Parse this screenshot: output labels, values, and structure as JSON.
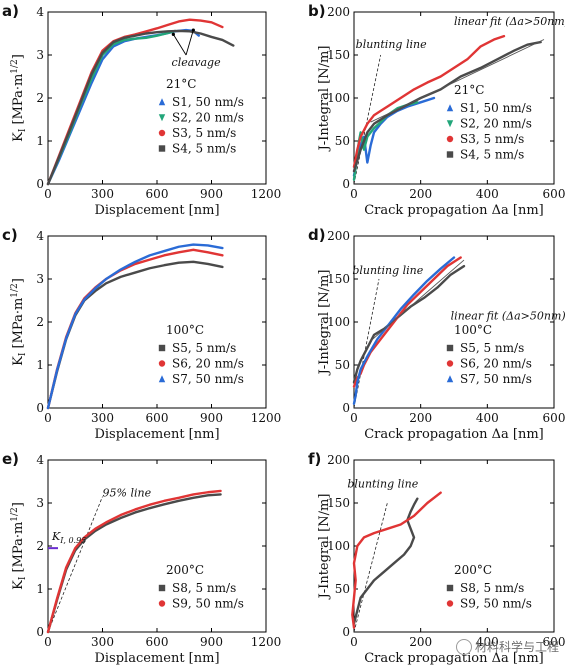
{
  "colors": {
    "blue": "#2a6bd6",
    "green": "#22a67a",
    "red": "#e03535",
    "dark": "#4a4a4a",
    "purple": "#6a2bd0",
    "fit": "#555555"
  },
  "watermark": "材料科学与工程",
  "chart_data": [
    {
      "panel": "a)",
      "type": "scatter",
      "xlabel": "Displacement [nm]",
      "ylabel_main": "K",
      "ylabel_sub": "I",
      "ylabel_rest": " [MPa·m",
      "ylabel_sup": "1/2",
      "ylabel_end": "]",
      "xlim": [
        0,
        1200
      ],
      "ylim": [
        0,
        4
      ],
      "xticks": [
        "0",
        "300",
        "600",
        "900",
        "1200"
      ],
      "yticks": [
        "0",
        "1",
        "2",
        "3",
        "4"
      ],
      "legend_title": "21°C",
      "legend_position": "center-right",
      "annotations": [
        {
          "text": "cleavage",
          "x": 680,
          "y": 2.75
        }
      ],
      "arrows": [
        {
          "x1": 760,
          "y1": 3.0,
          "x2": 690,
          "y2": 3.48
        },
        {
          "x1": 760,
          "y1": 3.0,
          "x2": 800,
          "y2": 3.58
        }
      ],
      "series": [
        {
          "name": "S1, 50 nm/s",
          "marker": "triangle",
          "color": "blue",
          "x": [
            0,
            60,
            120,
            180,
            240,
            300,
            360,
            420,
            480,
            540,
            600,
            650,
            700,
            760,
            800,
            830
          ],
          "y": [
            0,
            0.55,
            1.15,
            1.75,
            2.35,
            2.9,
            3.2,
            3.32,
            3.38,
            3.42,
            3.46,
            3.5,
            3.55,
            3.58,
            3.56,
            3.45
          ]
        },
        {
          "name": "S2, 20 nm/s",
          "marker": "triangle-down",
          "color": "green",
          "x": [
            0,
            60,
            120,
            180,
            240,
            300,
            360,
            420,
            480,
            540,
            600,
            650,
            700
          ],
          "y": [
            0,
            0.6,
            1.2,
            1.85,
            2.45,
            3.0,
            3.25,
            3.35,
            3.38,
            3.4,
            3.45,
            3.5,
            3.56
          ]
        },
        {
          "name": "S3, 5 nm/s",
          "marker": "circle",
          "color": "red",
          "x": [
            0,
            60,
            120,
            180,
            240,
            300,
            360,
            420,
            480,
            540,
            600,
            660,
            720,
            780,
            840,
            900,
            960
          ],
          "y": [
            0,
            0.65,
            1.3,
            1.95,
            2.6,
            3.1,
            3.32,
            3.42,
            3.48,
            3.55,
            3.62,
            3.7,
            3.78,
            3.82,
            3.8,
            3.76,
            3.65
          ]
        },
        {
          "name": "S4, 5 nm/s",
          "marker": "square",
          "color": "dark",
          "x": [
            0,
            60,
            120,
            180,
            240,
            300,
            360,
            420,
            480,
            540,
            600,
            660,
            720,
            780,
            840,
            900,
            960,
            1020
          ],
          "y": [
            0,
            0.62,
            1.25,
            1.9,
            2.55,
            3.05,
            3.3,
            3.4,
            3.45,
            3.5,
            3.53,
            3.55,
            3.56,
            3.55,
            3.5,
            3.42,
            3.35,
            3.22
          ]
        }
      ]
    },
    {
      "panel": "b)",
      "type": "scatter",
      "xlabel": "Crack propagation Δa [nm]",
      "ylabel": "J-Integral [N/m]",
      "xlim": [
        0,
        600
      ],
      "ylim": [
        0,
        200
      ],
      "xticks": [
        "0",
        "200",
        "400",
        "600"
      ],
      "yticks": [
        "0",
        "50",
        "100",
        "150",
        "200"
      ],
      "legend_title": "21°C",
      "legend_position": "bottom-right",
      "annotations": [
        {
          "text": "linear fit (Δa>50nm)",
          "x": 300,
          "y": 185
        },
        {
          "text": "blunting line",
          "x": 5,
          "y": 158
        }
      ],
      "fit_line": {
        "x": [
          50,
          570
        ],
        "y": [
          72,
          168
        ]
      },
      "blunting_line": {
        "x": [
          0,
          80
        ],
        "y": [
          0,
          150
        ]
      },
      "series": [
        {
          "name": "S1, 50 nm/s",
          "marker": "triangle",
          "color": "blue",
          "x": [
            0,
            10,
            20,
            30,
            40,
            50,
            60,
            80,
            100,
            130,
            160,
            200,
            240
          ],
          "y": [
            10,
            30,
            45,
            55,
            25,
            45,
            60,
            70,
            78,
            85,
            90,
            95,
            100
          ]
        },
        {
          "name": "S2, 20 nm/s",
          "marker": "triangle-down",
          "color": "green",
          "x": [
            0,
            5,
            10,
            15,
            20,
            30,
            40,
            60,
            80,
            100,
            130,
            160,
            190
          ],
          "y": [
            5,
            20,
            35,
            50,
            60,
            40,
            55,
            65,
            72,
            80,
            88,
            92,
            95
          ]
        },
        {
          "name": "S3, 5 nm/s",
          "marker": "circle",
          "color": "red",
          "x": [
            0,
            10,
            20,
            40,
            60,
            80,
            100,
            140,
            180,
            220,
            260,
            300,
            340,
            380,
            420,
            450
          ],
          "y": [
            20,
            40,
            55,
            70,
            80,
            85,
            90,
            100,
            110,
            118,
            125,
            135,
            145,
            160,
            168,
            172
          ]
        },
        {
          "name": "S4, 5 nm/s",
          "marker": "square",
          "color": "dark",
          "x": [
            0,
            20,
            40,
            60,
            100,
            150,
            200,
            260,
            320,
            380,
            430,
            480,
            520,
            560
          ],
          "y": [
            15,
            40,
            60,
            70,
            80,
            90,
            100,
            110,
            125,
            135,
            145,
            155,
            162,
            165
          ]
        }
      ]
    },
    {
      "panel": "c)",
      "type": "scatter",
      "xlabel": "Displacement [nm]",
      "ylabel_main": "K",
      "ylabel_sub": "I",
      "ylabel_rest": " [MPa·m",
      "ylabel_sup": "1/2",
      "ylabel_end": "]",
      "xlim": [
        0,
        1200
      ],
      "ylim": [
        0,
        4
      ],
      "xticks": [
        "0",
        "300",
        "600",
        "900",
        "1200"
      ],
      "yticks": [
        "0",
        "1",
        "2",
        "3",
        "4"
      ],
      "legend_title": "100°C",
      "legend_position": "bottom-right",
      "series": [
        {
          "name": "S5, 5 nm/s",
          "marker": "square",
          "color": "dark",
          "x": [
            0,
            50,
            100,
            150,
            200,
            260,
            320,
            400,
            480,
            560,
            640,
            720,
            800,
            880,
            960
          ],
          "y": [
            0,
            0.85,
            1.6,
            2.15,
            2.5,
            2.72,
            2.9,
            3.05,
            3.15,
            3.25,
            3.32,
            3.38,
            3.4,
            3.35,
            3.28
          ]
        },
        {
          "name": "S6, 20 nm/s",
          "marker": "circle",
          "color": "red",
          "x": [
            0,
            50,
            100,
            150,
            200,
            260,
            320,
            400,
            480,
            560,
            640,
            720,
            800,
            880,
            960
          ],
          "y": [
            0,
            0.9,
            1.65,
            2.2,
            2.55,
            2.8,
            3.0,
            3.2,
            3.35,
            3.45,
            3.55,
            3.62,
            3.68,
            3.62,
            3.55
          ]
        },
        {
          "name": "S7, 50 nm/s",
          "marker": "triangle",
          "color": "blue",
          "x": [
            0,
            50,
            100,
            150,
            200,
            260,
            320,
            400,
            480,
            560,
            640,
            720,
            800,
            880,
            960
          ],
          "y": [
            0,
            0.88,
            1.62,
            2.18,
            2.52,
            2.78,
            3.0,
            3.22,
            3.4,
            3.55,
            3.65,
            3.75,
            3.8,
            3.78,
            3.72
          ]
        }
      ]
    },
    {
      "panel": "d)",
      "type": "scatter",
      "xlabel": "Crack propagation Δa [nm]",
      "ylabel": "J-Integral [N/m]",
      "xlim": [
        0,
        600
      ],
      "ylim": [
        0,
        200
      ],
      "xticks": [
        "0",
        "200",
        "400",
        "600"
      ],
      "yticks": [
        "0",
        "50",
        "100",
        "150",
        "200"
      ],
      "legend_title": "100°C",
      "legend_position": "bottom-right",
      "annotations": [
        {
          "text": "blunting line",
          "x": -5,
          "y": 156
        },
        {
          "text": "linear fit (Δa>50nm)",
          "x": 290,
          "y": 103
        }
      ],
      "fit_line": {
        "x": [
          50,
          330
        ],
        "y": [
          78,
          172
        ]
      },
      "blunting_line": {
        "x": [
          0,
          75
        ],
        "y": [
          0,
          150
        ]
      },
      "series": [
        {
          "name": "S5, 5 nm/s",
          "marker": "square",
          "color": "dark",
          "x": [
            0,
            10,
            20,
            40,
            60,
            90,
            130,
            170,
            210,
            250,
            290,
            330
          ],
          "y": [
            30,
            45,
            55,
            70,
            85,
            92,
            105,
            118,
            128,
            140,
            155,
            165
          ]
        },
        {
          "name": "S6, 20 nm/s",
          "marker": "circle",
          "color": "red",
          "x": [
            0,
            10,
            20,
            30,
            50,
            80,
            120,
            160,
            200,
            240,
            280,
            320
          ],
          "y": [
            25,
            35,
            40,
            50,
            65,
            80,
            100,
            120,
            135,
            150,
            165,
            175
          ]
        },
        {
          "name": "S7, 50 nm/s",
          "marker": "triangle",
          "color": "blue",
          "x": [
            0,
            5,
            10,
            20,
            40,
            70,
            100,
            140,
            180,
            220,
            260,
            300
          ],
          "y": [
            5,
            15,
            30,
            45,
            60,
            80,
            95,
            115,
            132,
            148,
            162,
            175
          ]
        }
      ]
    },
    {
      "panel": "e)",
      "type": "scatter",
      "xlabel": "Displacement [nm]",
      "ylabel_main": "K",
      "ylabel_sub": "I",
      "ylabel_rest": " [MPa·m",
      "ylabel_sup": "1/2",
      "ylabel_end": "]",
      "xlim": [
        0,
        1200
      ],
      "ylim": [
        0,
        4
      ],
      "xticks": [
        "0",
        "300",
        "600",
        "900",
        "1200"
      ],
      "yticks": [
        "0",
        "1",
        "2",
        "3",
        "4"
      ],
      "legend_title": "200°C",
      "legend_position": "bottom-right",
      "annotations": [
        {
          "text": "95% line",
          "x": 300,
          "y": 3.15
        }
      ],
      "k_marker": {
        "label": "K",
        "sub": "I, 0.95",
        "y": 1.95
      },
      "ninety_five_line": {
        "x": [
          0,
          300
        ],
        "y": [
          0,
          3.15
        ]
      },
      "series": [
        {
          "name": "S8, 5 nm/s",
          "marker": "square",
          "color": "dark",
          "x": [
            0,
            50,
            100,
            150,
            200,
            260,
            320,
            400,
            480,
            560,
            640,
            720,
            800,
            880,
            950
          ],
          "y": [
            0,
            0.75,
            1.45,
            1.9,
            2.15,
            2.35,
            2.5,
            2.65,
            2.78,
            2.88,
            2.97,
            3.05,
            3.12,
            3.18,
            3.2
          ]
        },
        {
          "name": "S9, 50 nm/s",
          "marker": "circle",
          "color": "red",
          "x": [
            0,
            50,
            100,
            150,
            200,
            260,
            320,
            400,
            480,
            560,
            640,
            720,
            800,
            880,
            950
          ],
          "y": [
            0,
            0.78,
            1.5,
            1.95,
            2.2,
            2.4,
            2.55,
            2.72,
            2.85,
            2.96,
            3.05,
            3.12,
            3.2,
            3.25,
            3.28
          ]
        }
      ]
    },
    {
      "panel": "f)",
      "type": "scatter",
      "xlabel": "Crack propagation Δa [nm]",
      "ylabel": "J-Integral [N/m]",
      "xlim": [
        0,
        600
      ],
      "ylim": [
        0,
        200
      ],
      "xticks": [
        "0",
        "200",
        "400",
        "600"
      ],
      "yticks": [
        "0",
        "50",
        "100",
        "150",
        "200"
      ],
      "legend_title": "200°C",
      "legend_position": "bottom-right",
      "annotations": [
        {
          "text": "blunting line",
          "x": -20,
          "y": 168
        }
      ],
      "blunting_line": {
        "x": [
          0,
          100
        ],
        "y": [
          0,
          150
        ]
      },
      "series": [
        {
          "name": "S8, 5 nm/s",
          "marker": "square",
          "color": "dark",
          "x": [
            0,
            10,
            20,
            40,
            60,
            90,
            120,
            150,
            170,
            180,
            170,
            160,
            170,
            180,
            190
          ],
          "y": [
            10,
            25,
            40,
            50,
            60,
            70,
            80,
            90,
            100,
            110,
            120,
            130,
            140,
            148,
            155
          ]
        },
        {
          "name": "S9, 50 nm/s",
          "marker": "circle",
          "color": "red",
          "x": [
            0,
            -5,
            0,
            5,
            0,
            10,
            30,
            60,
            100,
            140,
            180,
            220,
            260
          ],
          "y": [
            5,
            20,
            40,
            60,
            80,
            100,
            110,
            115,
            120,
            125,
            135,
            150,
            162
          ]
        }
      ]
    }
  ]
}
